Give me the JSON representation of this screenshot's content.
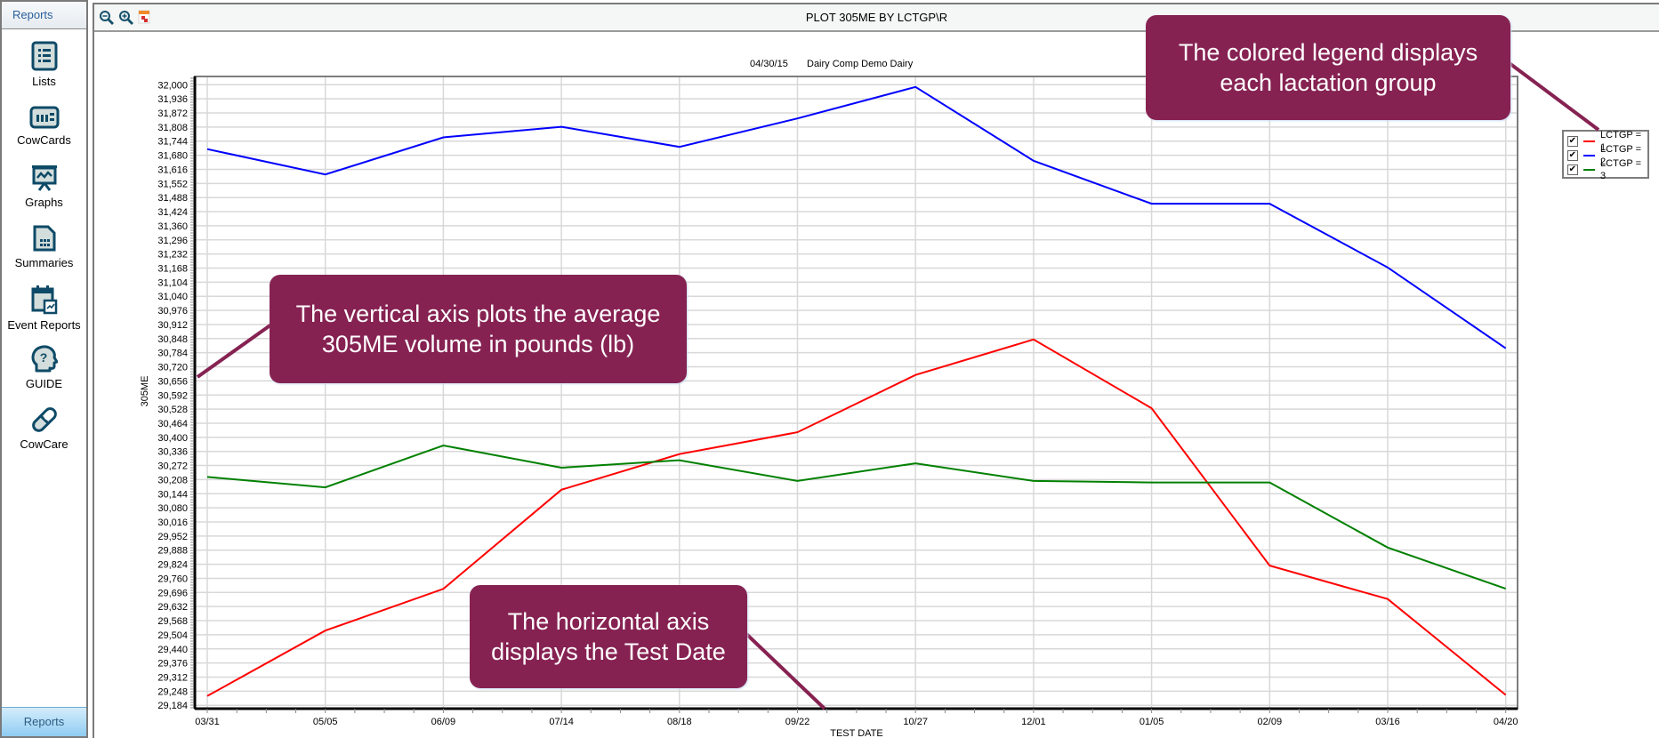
{
  "sidebar": {
    "header": "Reports",
    "items": [
      {
        "label": "Lists",
        "icon": "list-icon"
      },
      {
        "label": "CowCards",
        "icon": "cowcard-icon"
      },
      {
        "label": "Graphs",
        "icon": "graph-easel-icon"
      },
      {
        "label": "Summaries",
        "icon": "summary-document-icon"
      },
      {
        "label": "Event Reports",
        "icon": "calendar-report-icon"
      },
      {
        "label": "GUIDE",
        "icon": "help-head-icon"
      },
      {
        "label": "CowCare",
        "icon": "pill-icon"
      }
    ],
    "footer": "Reports"
  },
  "toolbar": {
    "title": "PLOT 305ME BY LCTGP\\R",
    "buttons": [
      {
        "icon": "zoom-out-icon"
      },
      {
        "icon": "zoom-in-icon"
      },
      {
        "icon": "export-report-icon"
      }
    ]
  },
  "chart_header": {
    "date": "04/30/15",
    "herd": "Dairy Comp Demo Dairy"
  },
  "legend": [
    {
      "label": "LCTGP = 1",
      "color": "#ff0000",
      "checked": true
    },
    {
      "label": "LCTGP = 2",
      "color": "#0000ff",
      "checked": true
    },
    {
      "label": "LCTGP = 3",
      "color": "#008000",
      "checked": true
    }
  ],
  "callouts": {
    "legend": "The colored legend displays each lactation group",
    "vertical": "The vertical axis plots the average 305ME volume in pounds (lb)",
    "horizontal": "The horizontal axis displays the Test Date"
  },
  "colors": {
    "callout": "#862252",
    "grid": "#d8d8d8",
    "axis": "#000000"
  },
  "chart_data": {
    "type": "line",
    "title": "PLOT 305ME BY LCTGP\\R",
    "subtitle": "04/30/15    Dairy Comp Demo Dairy",
    "xlabel": "TEST DATE",
    "ylabel": "305ME",
    "categories": [
      "03/31",
      "05/05",
      "06/09",
      "07/14",
      "08/18",
      "09/22",
      "10/27",
      "12/01",
      "01/05",
      "02/09",
      "03/16",
      "04/20"
    ],
    "yticks": [
      32000,
      31936,
      31872,
      31808,
      31744,
      31680,
      31616,
      31552,
      31488,
      31424,
      31360,
      31296,
      31232,
      31168,
      31104,
      31040,
      30976,
      30912,
      30848,
      30784,
      30720,
      30656,
      30592,
      30528,
      30464,
      30400,
      30336,
      30272,
      30208,
      30144,
      30080,
      30016,
      29952,
      29888,
      29824,
      29760,
      29696,
      29632,
      29568,
      29504,
      29440,
      29376,
      29312,
      29248,
      29184
    ],
    "ylim": [
      29184,
      32000
    ],
    "grid": true,
    "legend_position": "right",
    "series": [
      {
        "name": "LCTGP = 1",
        "color": "#ff0000",
        "values": [
          29226,
          29523,
          29712,
          30162,
          30324,
          30423,
          30683,
          30844,
          30532,
          29818,
          29666,
          29231
        ]
      },
      {
        "name": "LCTGP = 2",
        "color": "#0000ff",
        "values": [
          31708,
          31593,
          31761,
          31809,
          31718,
          31847,
          31990,
          31655,
          31460,
          31460,
          31171,
          30804
        ]
      },
      {
        "name": "LCTGP = 3",
        "color": "#008000",
        "values": [
          30220,
          30173,
          30363,
          30262,
          30296,
          30202,
          30282,
          30202,
          30195,
          30195,
          29900,
          29713
        ]
      }
    ]
  }
}
